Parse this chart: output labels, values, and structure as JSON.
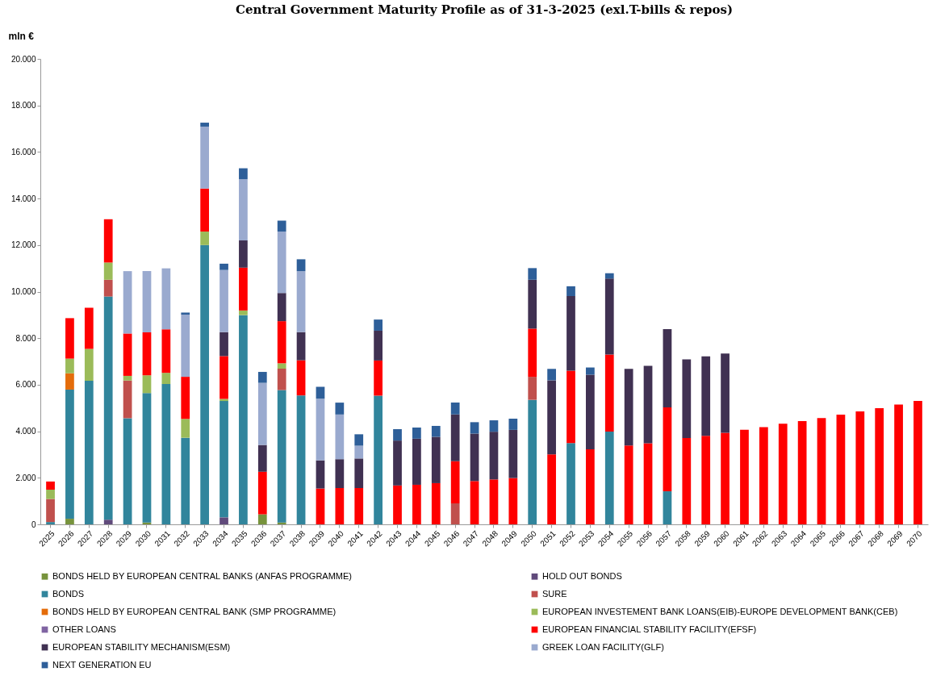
{
  "chart_data": {
    "type": "bar",
    "stacked": true,
    "title": "Central Government Maturity  Profile  as of 31-3-2025 (exl.T-bills & repos)",
    "ylabel": "mln €",
    "categories": [
      "2025",
      "2026",
      "2027",
      "2028",
      "2029",
      "2030",
      "2031",
      "2032",
      "2033",
      "2034",
      "2035",
      "2036",
      "2037",
      "2038",
      "2039",
      "2040",
      "2041",
      "2042",
      "2043",
      "2044",
      "2045",
      "2046",
      "2047",
      "2048",
      "2049",
      "2050",
      "2051",
      "2052",
      "2053",
      "2054",
      "2055",
      "2056",
      "2057",
      "2058",
      "2059",
      "2060",
      "2061",
      "2062",
      "2063",
      "2064",
      "2065",
      "2066",
      "2067",
      "2068",
      "2069",
      "2070"
    ],
    "series": [
      {
        "name": "BONDS HELD BY EUROPEAN CENTRAL BANKS (ANFAS PROGRAMME)",
        "color": "#77933c",
        "values": [
          null,
          240,
          null,
          null,
          null,
          80,
          null,
          null,
          null,
          null,
          null,
          430,
          80,
          null,
          null,
          null,
          null,
          null,
          null,
          null,
          null,
          null,
          null,
          null,
          null,
          null,
          null,
          null,
          null,
          null,
          null,
          null,
          null,
          null,
          null,
          null,
          null,
          null,
          null,
          null,
          null,
          null,
          null,
          null,
          null,
          null
        ]
      },
      {
        "name": "HOLD OUT BONDS",
        "color": "#604a7b",
        "values": [
          null,
          null,
          null,
          200,
          null,
          null,
          null,
          null,
          null,
          300,
          null,
          null,
          null,
          null,
          null,
          null,
          null,
          null,
          null,
          null,
          null,
          null,
          null,
          null,
          null,
          null,
          null,
          null,
          null,
          null,
          null,
          null,
          null,
          null,
          null,
          null,
          null,
          null,
          null,
          null,
          null,
          null,
          null,
          null,
          null,
          null
        ]
      },
      {
        "name": "BONDS",
        "color": "#31859c",
        "values": [
          100,
          5550,
          6170,
          9590,
          4560,
          5560,
          6030,
          3720,
          12000,
          5000,
          8990,
          null,
          5690,
          5540,
          null,
          null,
          null,
          5530,
          null,
          null,
          null,
          null,
          null,
          null,
          null,
          5350,
          null,
          3490,
          null,
          3990,
          null,
          null,
          1420,
          null,
          null,
          null,
          null,
          null,
          null,
          null,
          null,
          null,
          null,
          null,
          null,
          null
        ]
      },
      {
        "name": "SURE",
        "color": "#c0504d",
        "values": [
          990,
          null,
          null,
          720,
          1620,
          null,
          null,
          null,
          null,
          null,
          null,
          null,
          920,
          null,
          null,
          null,
          null,
          null,
          null,
          null,
          null,
          900,
          null,
          null,
          null,
          990,
          null,
          null,
          null,
          null,
          null,
          null,
          null,
          null,
          null,
          null,
          null,
          null,
          null,
          null,
          null,
          null,
          null,
          null,
          null,
          null
        ]
      },
      {
        "name": "BONDS HELD BY EUROPEAN CENTRAL BANK (SMP PROGRAMME)",
        "color": "#e46c0a",
        "values": [
          null,
          700,
          null,
          null,
          null,
          null,
          null,
          null,
          null,
          null,
          null,
          null,
          null,
          null,
          null,
          null,
          null,
          null,
          null,
          null,
          null,
          null,
          null,
          null,
          null,
          null,
          null,
          null,
          null,
          null,
          null,
          null,
          null,
          null,
          null,
          null,
          null,
          null,
          null,
          null,
          null,
          null,
          null,
          null,
          null,
          null
        ]
      },
      {
        "name": "EUROPEAN INVESTEMENT BANK LOANS(EIB)-EUROPE DEVELOPMENT BANK(CEB)",
        "color": "#9bbb59",
        "values": [
          400,
          630,
          1370,
          740,
          200,
          760,
          480,
          810,
          580,
          90,
          200,
          null,
          230,
          null,
          null,
          null,
          null,
          null,
          null,
          null,
          null,
          null,
          null,
          null,
          null,
          null,
          null,
          null,
          null,
          null,
          null,
          null,
          null,
          null,
          null,
          null,
          null,
          null,
          null,
          null,
          null,
          null,
          null,
          null,
          null,
          null
        ]
      },
      {
        "name": "OTHER LOANS",
        "color": "#8064a2",
        "values": [
          null,
          null,
          null,
          null,
          null,
          null,
          null,
          null,
          null,
          null,
          null,
          null,
          null,
          null,
          null,
          null,
          null,
          null,
          null,
          null,
          null,
          null,
          null,
          null,
          null,
          null,
          null,
          null,
          null,
          null,
          null,
          null,
          null,
          null,
          null,
          null,
          null,
          null,
          null,
          null,
          null,
          null,
          null,
          null,
          null,
          null
        ]
      },
      {
        "name": "EUROPEAN FINANCIAL STABILITY FACILITY(EFSF)",
        "color": "#ff0000",
        "values": [
          350,
          1740,
          1770,
          1860,
          1820,
          1850,
          1870,
          1810,
          1850,
          1840,
          1840,
          1830,
          1810,
          1510,
          1540,
          1560,
          1560,
          1510,
          1670,
          1700,
          1770,
          1810,
          1860,
          1930,
          1990,
          2070,
          3010,
          3110,
          3220,
          3310,
          3390,
          3480,
          3610,
          3710,
          3800,
          3930,
          4060,
          4180,
          4320,
          4440,
          4570,
          4710,
          4850,
          4990,
          5150,
          5300
        ]
      },
      {
        "name": "EUROPEAN  STABILITY MECHANISM(ESM)",
        "color": "#403152",
        "values": [
          null,
          null,
          null,
          null,
          null,
          null,
          null,
          null,
          null,
          1030,
          1170,
          1150,
          1210,
          1210,
          1210,
          1240,
          1270,
          1280,
          1930,
          1980,
          1990,
          2010,
          2040,
          2050,
          2070,
          2100,
          3180,
          3210,
          3210,
          3260,
          3290,
          3330,
          3360,
          3380,
          3420,
          3410,
          null,
          null,
          null,
          null,
          null,
          null,
          null,
          null,
          null,
          null
        ]
      },
      {
        "name": "GREEK LOAN FACILITY(GLF)",
        "color": "#9aaacf",
        "values": [
          null,
          null,
          null,
          null,
          2680,
          2630,
          2620,
          2670,
          2660,
          2670,
          2630,
          2670,
          2640,
          2620,
          2650,
          1920,
          550,
          null,
          null,
          null,
          null,
          null,
          null,
          null,
          null,
          null,
          null,
          null,
          null,
          null,
          null,
          null,
          null,
          null,
          null,
          null,
          null,
          null,
          null,
          null,
          null,
          null,
          null,
          null,
          null,
          null
        ]
      },
      {
        "name": "NEXT GENERATION EU",
        "color": "#2e5f99",
        "values": [
          null,
          null,
          null,
          null,
          null,
          null,
          null,
          90,
          170,
          270,
          470,
          470,
          470,
          510,
          510,
          510,
          490,
          480,
          490,
          480,
          470,
          510,
          490,
          490,
          480,
          500,
          490,
          420,
          310,
          230,
          null,
          null,
          null,
          null,
          null,
          null,
          null,
          null,
          null,
          null,
          null,
          null,
          null,
          null,
          null,
          null
        ]
      }
    ],
    "ylim": [
      0,
      20000
    ],
    "yticks": [
      0,
      {
        "value": 2000,
        "label": "2.000"
      },
      {
        "value": 4000,
        "label": "4.000"
      },
      {
        "value": 6000,
        "label": "6.000"
      },
      {
        "value": 8000,
        "label": "8.000"
      },
      {
        "value": 10000,
        "label": "10.000"
      },
      {
        "value": 12000,
        "label": "12.000"
      },
      {
        "value": 14000,
        "label": "14.000"
      },
      {
        "value": 16000,
        "label": "16.000"
      },
      {
        "value": 18000,
        "label": "18.000"
      },
      {
        "value": 20000,
        "label": "20.000"
      }
    ],
    "grid": false,
    "legend": "bottom"
  }
}
